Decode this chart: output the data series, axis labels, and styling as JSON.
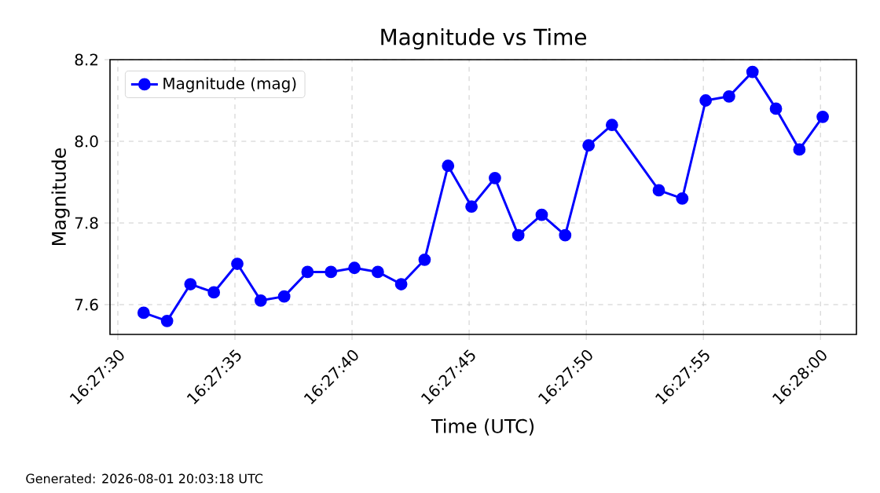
{
  "chart_data": {
    "type": "line",
    "title": "Magnitude vs Time",
    "xlabel": "Time (UTC)",
    "ylabel": "Magnitude",
    "annotations": [
      "Generated: 2026-08-01 20:03:18 UTC"
    ],
    "x": [
      16.458639,
      16.458917,
      16.459194,
      16.459472,
      16.45975,
      16.460028,
      16.460306,
      16.460583,
      16.460861,
      16.461139,
      16.461417,
      16.461694,
      16.461972,
      16.46225,
      16.462528,
      16.462806,
      16.463083,
      16.463361,
      16.463639,
      16.463917,
      16.464194,
      16.46475,
      16.465028,
      16.465306,
      16.465583,
      16.465861,
      16.466139,
      16.466417,
      16.466694
    ],
    "series": [
      {
        "name": "Magnitude (mag)",
        "color": "#0000ff",
        "values": [
          7.58,
          7.56,
          7.65,
          7.63,
          7.7,
          7.61,
          7.62,
          7.68,
          7.68,
          7.69,
          7.68,
          7.65,
          7.71,
          7.94,
          7.84,
          7.91,
          7.77,
          7.82,
          7.77,
          7.99,
          8.04,
          7.88,
          7.86,
          8.1,
          8.11,
          8.17,
          8.08,
          7.98,
          8.06
        ]
      }
    ],
    "xlim": [
      16.45824,
      16.467094
    ],
    "xticks": [
      {
        "value": 16.458333,
        "label": "16:27:30"
      },
      {
        "value": 16.459722,
        "label": "16:27:35"
      },
      {
        "value": 16.461111,
        "label": "16:27:40"
      },
      {
        "value": 16.4625,
        "label": "16:27:45"
      },
      {
        "value": 16.463889,
        "label": "16:27:50"
      },
      {
        "value": 16.465278,
        "label": "16:27:55"
      },
      {
        "value": 16.466667,
        "label": "16:28:00"
      }
    ],
    "ylim": [
      7.527,
      8.2
    ],
    "yticks": [
      7.6,
      7.8,
      {
        "value": 8.0,
        "label": "8.0"
      },
      8.2
    ],
    "grid": true,
    "legend": "top left",
    "marker": "circle",
    "line_style": "solid"
  }
}
